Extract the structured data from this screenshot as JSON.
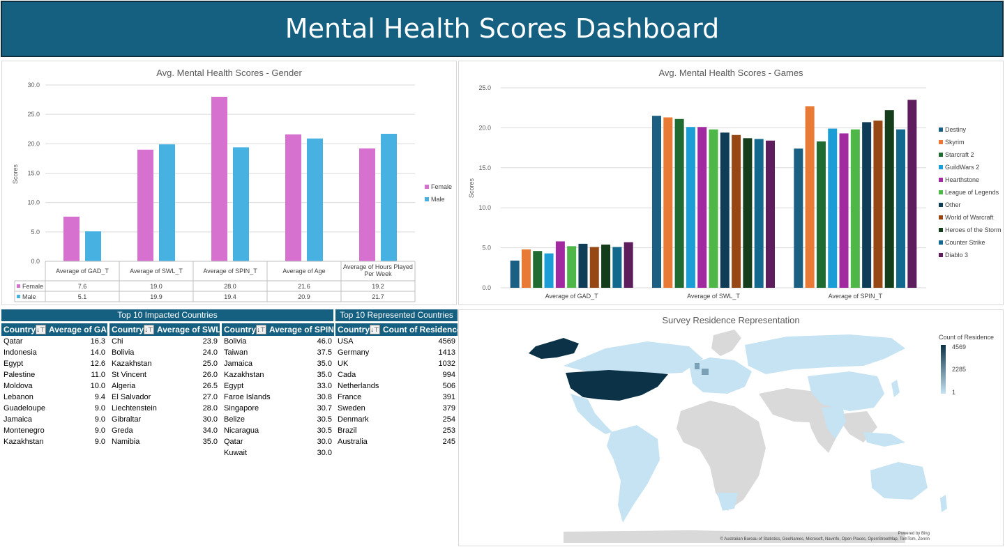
{
  "banner": {
    "title": "Mental Health Scores Dashboard"
  },
  "gender_chart": {
    "title": "Avg. Mental Health Scores  - Gender",
    "ylabel": "Scores",
    "legend": [
      "Female",
      "Male"
    ],
    "colors": {
      "Female": "#d671cf",
      "Male": "#47b1e2"
    },
    "chart_data": {
      "type": "bar",
      "title": "Avg. Mental Health Scores  - Gender",
      "ylabel": "Scores",
      "ylim": [
        0,
        30
      ],
      "yticks": [
        "0.0",
        "5.0",
        "10.0",
        "15.0",
        "20.0",
        "25.0",
        "30.0"
      ],
      "categories": [
        "Average of GAD_T",
        "Average of SWL_T",
        "Average of SPIN_T",
        "Average of Age",
        "Average of Hours Played Per Week"
      ],
      "series": [
        {
          "name": "Female",
          "values": [
            7.6,
            19.0,
            28.0,
            21.6,
            19.2
          ],
          "labels": [
            "7.6",
            "19.0",
            "28.0",
            "21.6",
            "19.2"
          ]
        },
        {
          "name": "Male",
          "values": [
            5.1,
            19.9,
            19.4,
            20.9,
            21.7
          ],
          "labels": [
            "5.1",
            "19.9",
            "19.4",
            "20.9",
            "21.7"
          ]
        }
      ]
    }
  },
  "games_chart": {
    "title": "Avg. Mental Health Scores  - Games",
    "ylabel": "Scores",
    "chart_data": {
      "type": "bar",
      "title": "Avg. Mental Health Scores  - Games",
      "ylabel": "Scores",
      "ylim": [
        0,
        25
      ],
      "yticks": [
        "0.0",
        "5.0",
        "10.0",
        "15.0",
        "20.0",
        "25.0"
      ],
      "categories": [
        "Average of GAD_T",
        "Average of SWL_T",
        "Average of SPIN_T"
      ],
      "series": [
        {
          "name": "Destiny",
          "color": "#1b5f82",
          "values": [
            3.4,
            21.5,
            17.4
          ]
        },
        {
          "name": "Skyrim",
          "color": "#e97a35",
          "values": [
            4.8,
            21.3,
            22.7
          ]
        },
        {
          "name": "Starcraft 2",
          "color": "#1f6b32",
          "values": [
            4.6,
            21.1,
            18.3
          ]
        },
        {
          "name": "GuildWars 2",
          "color": "#1b9dd6",
          "values": [
            4.3,
            20.1,
            19.9
          ]
        },
        {
          "name": "Hearthstone",
          "color": "#a22aa0",
          "values": [
            5.8,
            20.1,
            19.3
          ]
        },
        {
          "name": "League of Legends",
          "color": "#4eb748",
          "values": [
            5.2,
            19.8,
            19.8
          ]
        },
        {
          "name": "Other",
          "color": "#0f3d57",
          "values": [
            5.5,
            19.4,
            20.7
          ]
        },
        {
          "name": "World of Warcraft",
          "color": "#974714",
          "values": [
            5.1,
            19.1,
            20.9
          ]
        },
        {
          "name": "Heroes of the Storm",
          "color": "#143d1b",
          "values": [
            5.4,
            18.7,
            22.2
          ]
        },
        {
          "name": "Counter Strike",
          "color": "#13688e",
          "values": [
            5.1,
            18.6,
            19.8
          ]
        },
        {
          "name": "Diablo 3",
          "color": "#5e1d5c",
          "values": [
            5.7,
            18.4,
            23.5
          ]
        }
      ]
    }
  },
  "tables": {
    "impacted_title": "Top 10 Impacted Countries",
    "represented_title": "Top 10 Represented Countries",
    "gad": {
      "header_country": "Country",
      "header_value": "Average of GAD",
      "rows": [
        {
          "country": "Qatar",
          "value": "16.3"
        },
        {
          "country": "Indonesia",
          "value": "14.0"
        },
        {
          "country": "Egypt",
          "value": "12.6"
        },
        {
          "country": "Palestine",
          "value": "11.0"
        },
        {
          "country": "Moldova",
          "value": "10.0"
        },
        {
          "country": "Lebanon",
          "value": "9.4"
        },
        {
          "country": "Guadeloupe",
          "value": "9.0"
        },
        {
          "country": "Jamaica",
          "value": "9.0"
        },
        {
          "country": "Montenegro",
          "value": "9.0"
        },
        {
          "country": "Kazakhstan",
          "value": "9.0"
        }
      ]
    },
    "swl": {
      "header_country": "Country",
      "header_value": "Average of SWL",
      "rows": [
        {
          "country": "Chi",
          "value": "23.9"
        },
        {
          "country": "Bolivia",
          "value": "24.0"
        },
        {
          "country": "Kazakhstan",
          "value": "25.0"
        },
        {
          "country": "St Vincent",
          "value": "26.0"
        },
        {
          "country": "Algeria",
          "value": "26.5"
        },
        {
          "country": "El Salvador",
          "value": "27.0"
        },
        {
          "country": "Liechtenstein",
          "value": "28.0"
        },
        {
          "country": "Gibraltar",
          "value": "30.0"
        },
        {
          "country": "Greda",
          "value": "34.0"
        },
        {
          "country": "Namibia",
          "value": "35.0"
        }
      ]
    },
    "spin": {
      "header_country": "Country",
      "header_value": "Average of SPIN",
      "rows": [
        {
          "country": "Bolivia",
          "value": "46.0"
        },
        {
          "country": "Taiwan",
          "value": "37.5"
        },
        {
          "country": "Jamaica",
          "value": "35.0"
        },
        {
          "country": "Kazakhstan",
          "value": "35.0"
        },
        {
          "country": "Egypt",
          "value": "33.0"
        },
        {
          "country": "Faroe Islands",
          "value": "30.8"
        },
        {
          "country": "Singapore",
          "value": "30.7"
        },
        {
          "country": "Belize",
          "value": "30.5"
        },
        {
          "country": "Nicaragua",
          "value": "30.5"
        },
        {
          "country": "Qatar",
          "value": "30.0"
        },
        {
          "country": "Kuwait",
          "value": "30.0"
        }
      ]
    },
    "residence": {
      "header_country": "Country",
      "header_value": "Count of Residence",
      "rows": [
        {
          "country": "USA",
          "value": "4569"
        },
        {
          "country": "Germany",
          "value": "1413"
        },
        {
          "country": "UK",
          "value": "1032"
        },
        {
          "country": "Cada",
          "value": "994"
        },
        {
          "country": "Netherlands",
          "value": "506"
        },
        {
          "country": "France",
          "value": "391"
        },
        {
          "country": "Sweden",
          "value": "379"
        },
        {
          "country": "Denmark",
          "value": "254"
        },
        {
          "country": "Brazil",
          "value": "253"
        },
        {
          "country": "Australia",
          "value": "245"
        }
      ]
    }
  },
  "map": {
    "title": "Survey Residence Representation",
    "legend_title": "Count of Residence",
    "legend_max": "4569",
    "legend_mid": "2285",
    "legend_min": "1",
    "powered_by": "Powered by Bing",
    "attribution": "© Australian Bureau of Statistics, GeoNames, Microsoft, Navinfo, Open Places, OpenStreetMap, TomTom, Zenrin",
    "colors": {
      "high": "#0b3246",
      "low": "#c5e3f3",
      "none": "#d9d9d9"
    }
  }
}
